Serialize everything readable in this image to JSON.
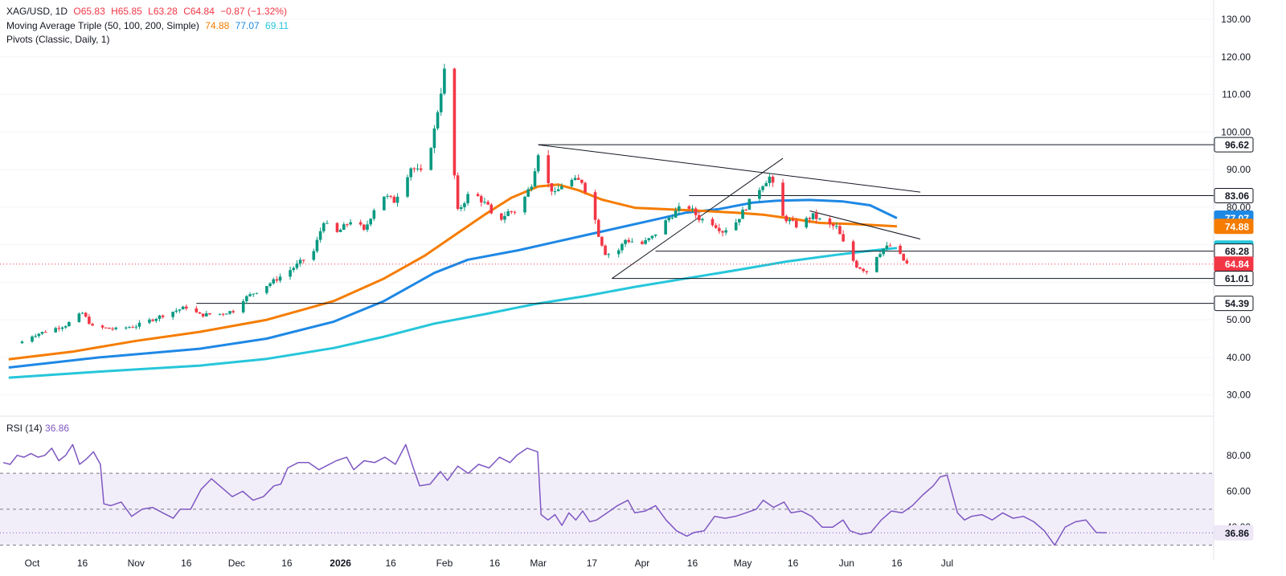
{
  "legend": {
    "symbol": "XAG/USD, 1D",
    "open": "O65.83",
    "high": "H65.85",
    "low": "L63.28",
    "close": "C64.84",
    "change": "−0.87 (−1.32%)",
    "ma_label": "Moving Average Triple (50, 100, 200, Simple)",
    "ma50": "74.88",
    "ma100": "77.07",
    "ma200": "69.11",
    "pivots": "Pivots (Classic, Daily, 1)"
  },
  "rsi_legend": {
    "label": "RSI (14)",
    "value": "36.86"
  },
  "colors": {
    "up": "#089981",
    "down": "#f23645",
    "ma50": "#f57c00",
    "ma100": "#1e88e5",
    "ma200": "#26c6da",
    "rsi": "#7e57c2",
    "rsi_band": "#ede7f6"
  },
  "chart_data": [
    {
      "type": "candlestick",
      "symbol": "XAG/USD",
      "timeframe": "1D",
      "ylim": [
        25,
        133
      ],
      "y_ticks": [
        "30.00",
        "40.00",
        "50.00",
        "60.00",
        "70.00",
        "80.00",
        "90.00",
        "100.00",
        "110.00",
        "120.00",
        "130.00"
      ],
      "x_ticks": [
        {
          "label": "Oct",
          "bold": false
        },
        {
          "label": "16",
          "bold": false
        },
        {
          "label": "Nov",
          "bold": false
        },
        {
          "label": "16",
          "bold": false
        },
        {
          "label": "Dec",
          "bold": false
        },
        {
          "label": "16",
          "bold": false
        },
        {
          "label": "2026",
          "bold": true
        },
        {
          "label": "16",
          "bold": false
        },
        {
          "label": "Feb",
          "bold": false
        },
        {
          "label": "16",
          "bold": false
        },
        {
          "label": "Mar",
          "bold": false
        },
        {
          "label": "17",
          "bold": false
        },
        {
          "label": "Apr",
          "bold": false
        },
        {
          "label": "16",
          "bold": false
        },
        {
          "label": "May",
          "bold": false
        },
        {
          "label": "16",
          "bold": false
        },
        {
          "label": "Jun",
          "bold": false
        },
        {
          "label": "16",
          "bold": false
        },
        {
          "label": "Jul",
          "bold": false
        }
      ],
      "x_tick_days": [
        0,
        15,
        31,
        46,
        61,
        76,
        92,
        107,
        123,
        138,
        151,
        167,
        182,
        197,
        212,
        227,
        243,
        258,
        273
      ],
      "candle_anchors": [
        [
          -3,
          44.2
        ],
        [
          0,
          45.8
        ],
        [
          10,
          48.6
        ],
        [
          15,
          51.8
        ],
        [
          18,
          48.1
        ],
        [
          25,
          47.5
        ],
        [
          31,
          48.4
        ],
        [
          40,
          51.6
        ],
        [
          46,
          53.4
        ],
        [
          50,
          51.3
        ],
        [
          56,
          51.6
        ],
        [
          60,
          52.4
        ],
        [
          63,
          55.5
        ],
        [
          72,
          60.3
        ],
        [
          78,
          63.9
        ],
        [
          84,
          68.2
        ],
        [
          87,
          76.4
        ],
        [
          90,
          72.3
        ],
        [
          96,
          77.2
        ],
        [
          99,
          73.5
        ],
        [
          104,
          83.6
        ],
        [
          108,
          81.6
        ],
        [
          113,
          90.6
        ],
        [
          117,
          88.6
        ],
        [
          120,
          100.5
        ],
        [
          123,
          116.2
        ],
        [
          125,
          118.5
        ],
        [
          126,
          88.3
        ],
        [
          127,
          78.8
        ],
        [
          131,
          84.5
        ],
        [
          136,
          80.1
        ],
        [
          138,
          75.4
        ],
        [
          142,
          78.7
        ],
        [
          145,
          79.0
        ],
        [
          149,
          86.3
        ],
        [
          151,
          94.6
        ],
        [
          153,
          87.4
        ],
        [
          156,
          83.4
        ],
        [
          159,
          87.1
        ],
        [
          164,
          86.9
        ],
        [
          167,
          80.4
        ],
        [
          169,
          72.7
        ],
        [
          171,
          67.8
        ],
        [
          174,
          67.2
        ],
        [
          177,
          71.3
        ],
        [
          182,
          70.2
        ],
        [
          185,
          72.0
        ],
        [
          190,
          77.2
        ],
        [
          195,
          81.0
        ],
        [
          199,
          77.0
        ],
        [
          203,
          75.8
        ],
        [
          206,
          73.6
        ],
        [
          210,
          76.1
        ],
        [
          214,
          81.4
        ],
        [
          218,
          86.2
        ],
        [
          220,
          88.0
        ],
        [
          222,
          83.5
        ],
        [
          224,
          77.4
        ],
        [
          228,
          75.1
        ],
        [
          233,
          77.7
        ],
        [
          237,
          75.4
        ],
        [
          240,
          74.6
        ],
        [
          243,
          68.4
        ],
        [
          246,
          64.4
        ],
        [
          249,
          62.9
        ],
        [
          251,
          66.3
        ],
        [
          254,
          68.9
        ],
        [
          256,
          69.7
        ],
        [
          258,
          68.3
        ],
        [
          260,
          65.8
        ],
        [
          261,
          64.84
        ]
      ],
      "ma50": [
        [
          -7,
          39.5
        ],
        [
          12,
          41.5
        ],
        [
          31,
          44.4
        ],
        [
          50,
          46.8
        ],
        [
          70,
          50.0
        ],
        [
          90,
          55.0
        ],
        [
          105,
          61.0
        ],
        [
          117,
          67.0
        ],
        [
          126,
          72.5
        ],
        [
          135,
          78.0
        ],
        [
          143,
          82.5
        ],
        [
          151,
          85.5
        ],
        [
          157,
          86.0
        ],
        [
          163,
          84.5
        ],
        [
          170,
          82.0
        ],
        [
          180,
          79.8
        ],
        [
          188,
          79.5
        ],
        [
          200,
          79.0
        ],
        [
          210,
          78.5
        ],
        [
          218,
          78.0
        ],
        [
          226,
          77.0
        ],
        [
          235,
          75.8
        ],
        [
          245,
          75.5
        ],
        [
          258,
          74.88
        ]
      ],
      "ma100": [
        [
          -7,
          37.3
        ],
        [
          20,
          40.0
        ],
        [
          50,
          42.3
        ],
        [
          70,
          45.0
        ],
        [
          90,
          49.5
        ],
        [
          105,
          55.0
        ],
        [
          120,
          62.5
        ],
        [
          130,
          66.0
        ],
        [
          145,
          68.5
        ],
        [
          155,
          70.5
        ],
        [
          165,
          72.5
        ],
        [
          175,
          74.5
        ],
        [
          185,
          76.5
        ],
        [
          195,
          78.5
        ],
        [
          205,
          79.5
        ],
        [
          215,
          81.2
        ],
        [
          222,
          81.7
        ],
        [
          232,
          81.9
        ],
        [
          242,
          81.5
        ],
        [
          250,
          80.5
        ],
        [
          258,
          77.07
        ]
      ],
      "ma200": [
        [
          -7,
          34.6
        ],
        [
          20,
          36.2
        ],
        [
          50,
          37.8
        ],
        [
          70,
          39.6
        ],
        [
          90,
          42.5
        ],
        [
          105,
          45.5
        ],
        [
          120,
          49.0
        ],
        [
          135,
          51.5
        ],
        [
          150,
          54.2
        ],
        [
          165,
          56.3
        ],
        [
          180,
          58.8
        ],
        [
          195,
          61.0
        ],
        [
          210,
          63.2
        ],
        [
          225,
          65.5
        ],
        [
          240,
          67.3
        ],
        [
          250,
          68.4
        ],
        [
          258,
          69.11
        ]
      ],
      "trendlines": [
        {
          "from": [
            151,
            96.6
          ],
          "to": [
            265,
            84.0
          ]
        },
        {
          "from": [
            173,
            61.0
          ],
          "to": [
            224,
            93.0
          ]
        },
        {
          "from": [
            232,
            79.0
          ],
          "to": [
            265,
            71.5
          ]
        }
      ],
      "horizontal_lines": [
        {
          "from_day": 151,
          "value": 96.62
        },
        {
          "from_day": 196,
          "value": 83.06
        },
        {
          "from_day": 186,
          "value": 68.28
        },
        {
          "from_day": 173,
          "value": 61.01
        },
        {
          "from_day": 49,
          "value": 54.39
        }
      ],
      "last_price": 64.84,
      "price_badges": [
        {
          "value": 96.62,
          "text": "96.62",
          "bg": "#ffffff",
          "fg": "#131722",
          "border": "#131722"
        },
        {
          "value": 83.06,
          "text": "83.06",
          "bg": "#ffffff",
          "fg": "#131722",
          "border": "#131722"
        },
        {
          "value": 77.07,
          "text": "77.07",
          "bg": "#1e88e5",
          "fg": "#ffffff",
          "border": "#1e88e5"
        },
        {
          "value": 74.88,
          "text": "74.88",
          "bg": "#f57c00",
          "fg": "#ffffff",
          "border": "#f57c00"
        },
        {
          "value": 69.11,
          "text": "69.11",
          "bg": "#26c6da",
          "fg": "#131722",
          "border": "#26c6da"
        },
        {
          "value": 68.28,
          "text": "68.28",
          "bg": "#ffffff",
          "fg": "#131722",
          "border": "#131722"
        },
        {
          "value": 64.84,
          "text": "64.84",
          "bg": "#f23645",
          "fg": "#ffffff",
          "border": "#f23645"
        },
        {
          "value": 61.01,
          "text": "61.01",
          "bg": "#ffffff",
          "fg": "#131722",
          "border": "#131722"
        },
        {
          "value": 54.39,
          "text": "54.39",
          "bg": "#ffffff",
          "fg": "#131722",
          "border": "#131722"
        }
      ]
    },
    {
      "type": "line",
      "name": "RSI (14)",
      "ylim": [
        24,
        92
      ],
      "y_ticks": [
        "40.00",
        "60.00",
        "80.00"
      ],
      "levels": [
        70,
        50,
        30
      ],
      "band": [
        30,
        70
      ],
      "current": 36.86,
      "current_text": "36.86",
      "points": [
        [
          -7,
          76
        ],
        [
          -5,
          75
        ],
        [
          -3,
          80
        ],
        [
          -1,
          79
        ],
        [
          1,
          81
        ],
        [
          3,
          79
        ],
        [
          5,
          80
        ],
        [
          7,
          84
        ],
        [
          9,
          77
        ],
        [
          11,
          80
        ],
        [
          13,
          86
        ],
        [
          15,
          75
        ],
        [
          17,
          78
        ],
        [
          19,
          82
        ],
        [
          21,
          75
        ],
        [
          22,
          53
        ],
        [
          24,
          52
        ],
        [
          27,
          54
        ],
        [
          30,
          46
        ],
        [
          33,
          50
        ],
        [
          36,
          51
        ],
        [
          39,
          48
        ],
        [
          42,
          45
        ],
        [
          44,
          50
        ],
        [
          47,
          50
        ],
        [
          50,
          61
        ],
        [
          53,
          67
        ],
        [
          56,
          62
        ],
        [
          59,
          57
        ],
        [
          62,
          60
        ],
        [
          65,
          55
        ],
        [
          68,
          57
        ],
        [
          71,
          63
        ],
        [
          73,
          64
        ],
        [
          75,
          73
        ],
        [
          78,
          76
        ],
        [
          81,
          76
        ],
        [
          84,
          72
        ],
        [
          86,
          74
        ],
        [
          89,
          77
        ],
        [
          92,
          79
        ],
        [
          94,
          72
        ],
        [
          97,
          77
        ],
        [
          100,
          76
        ],
        [
          103,
          79
        ],
        [
          106,
          75
        ],
        [
          109,
          86
        ],
        [
          111,
          74
        ],
        [
          113,
          63
        ],
        [
          116,
          64
        ],
        [
          119,
          71
        ],
        [
          121,
          66
        ],
        [
          124,
          74
        ],
        [
          127,
          70
        ],
        [
          130,
          75
        ],
        [
          133,
          73
        ],
        [
          136,
          79
        ],
        [
          139,
          76
        ],
        [
          141,
          80
        ],
        [
          144,
          84
        ],
        [
          147,
          82
        ],
        [
          148,
          47
        ],
        [
          150,
          44
        ],
        [
          152,
          47
        ],
        [
          154,
          41
        ],
        [
          156,
          48
        ],
        [
          158,
          44
        ],
        [
          160,
          49
        ],
        [
          162,
          43
        ],
        [
          164,
          44
        ],
        [
          167,
          48
        ],
        [
          170,
          52
        ],
        [
          173,
          55
        ],
        [
          175,
          48
        ],
        [
          178,
          49
        ],
        [
          181,
          52
        ],
        [
          184,
          44
        ],
        [
          187,
          38
        ],
        [
          190,
          35
        ],
        [
          192,
          37
        ],
        [
          195,
          38
        ],
        [
          198,
          46
        ],
        [
          201,
          45
        ],
        [
          204,
          46
        ],
        [
          207,
          48
        ],
        [
          210,
          50
        ],
        [
          212,
          55
        ],
        [
          215,
          51
        ],
        [
          218,
          54
        ],
        [
          220,
          48
        ],
        [
          223,
          49
        ],
        [
          226,
          46
        ],
        [
          229,
          40
        ],
        [
          232,
          40
        ],
        [
          235,
          44
        ],
        [
          237,
          38
        ],
        [
          240,
          36
        ],
        [
          243,
          37
        ],
        [
          246,
          44
        ],
        [
          249,
          49
        ],
        [
          252,
          48
        ],
        [
          255,
          52
        ],
        [
          258,
          58
        ],
        [
          261,
          63
        ],
        [
          263,
          68
        ],
        [
          265,
          69
        ],
        [
          268,
          48
        ],
        [
          270,
          44
        ],
        [
          272,
          46
        ],
        [
          275,
          47
        ],
        [
          278,
          44
        ],
        [
          281,
          48
        ],
        [
          284,
          45
        ],
        [
          287,
          46
        ],
        [
          290,
          43
        ],
        [
          293,
          38
        ],
        [
          296,
          30
        ],
        [
          299,
          40
        ],
        [
          302,
          43
        ],
        [
          305,
          44
        ],
        [
          308,
          37
        ],
        [
          311,
          36.86
        ]
      ],
      "x_scale_note": "rsi"
    }
  ]
}
